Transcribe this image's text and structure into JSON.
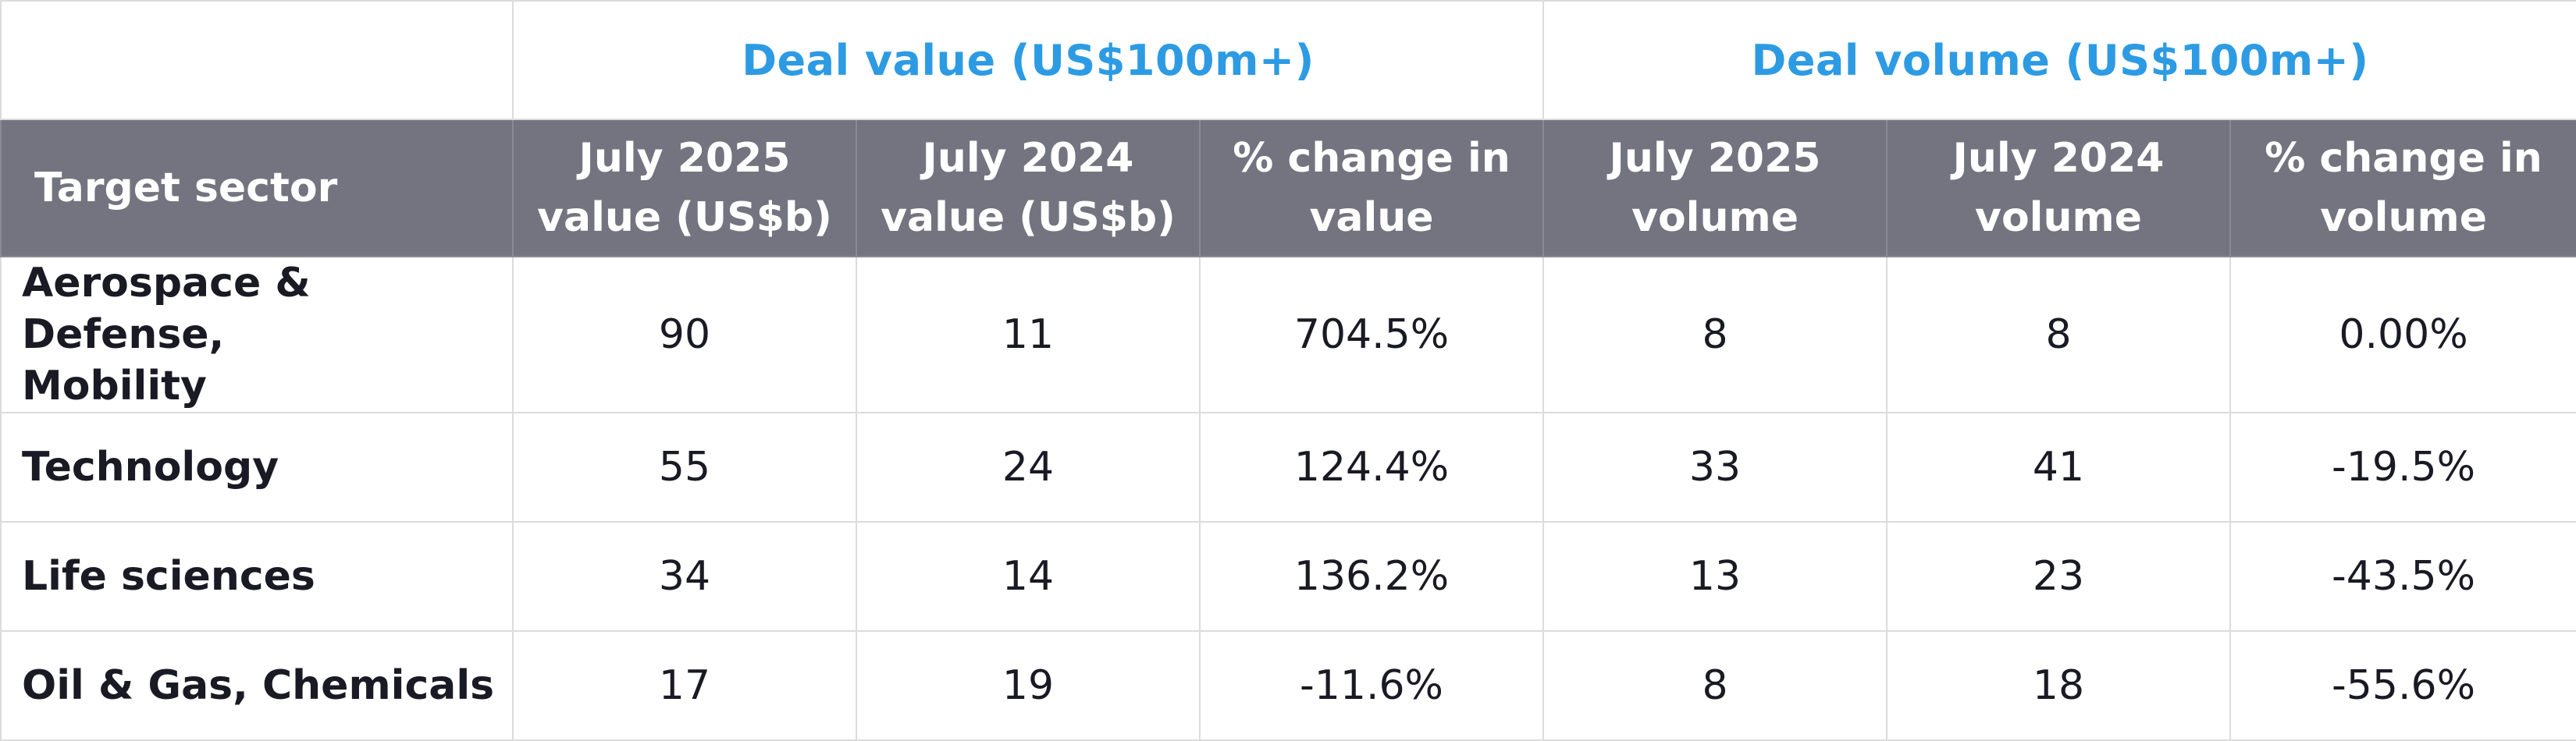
{
  "group_headers": {
    "value": "Deal value (US$100m+)",
    "volume": "Deal volume (US$100m+)"
  },
  "columns": {
    "sector": "Target sector",
    "v2025": [
      "July 2025",
      "value (US$b)"
    ],
    "v2024": [
      "July 2024",
      "value (US$b)"
    ],
    "vchg": [
      "% change in",
      "value"
    ],
    "n2025": [
      "July 2025",
      "volume"
    ],
    "n2024": [
      "July 2024",
      "volume"
    ],
    "nchg": [
      "% change in",
      "volume"
    ]
  },
  "rows": [
    {
      "sector": [
        "Aerospace & Defense,",
        "Mobility"
      ],
      "v2025": "90",
      "v2024": "11",
      "vchg": "704.5%",
      "n2025": "8",
      "n2024": "8",
      "nchg": "0.00%"
    },
    {
      "sector": [
        "Technology"
      ],
      "v2025": "55",
      "v2024": "24",
      "vchg": "124.4%",
      "n2025": "33",
      "n2024": "41",
      "nchg": "-19.5%"
    },
    {
      "sector": [
        "Life sciences"
      ],
      "v2025": "34",
      "v2024": "14",
      "vchg": "136.2%",
      "n2025": "13",
      "n2024": "23",
      "nchg": "-43.5%"
    },
    {
      "sector": [
        "Oil & Gas, Chemicals"
      ],
      "v2025": "17",
      "v2024": "19",
      "vchg": "-11.6%",
      "n2025": "8",
      "n2024": "18",
      "nchg": "-55.6%"
    }
  ],
  "colors": {
    "group_header_text": "#2d9be3",
    "column_header_bg": "#747480",
    "column_header_text": "#ffffff",
    "body_text": "#1a1a24",
    "grid": "#dcdcdc"
  }
}
